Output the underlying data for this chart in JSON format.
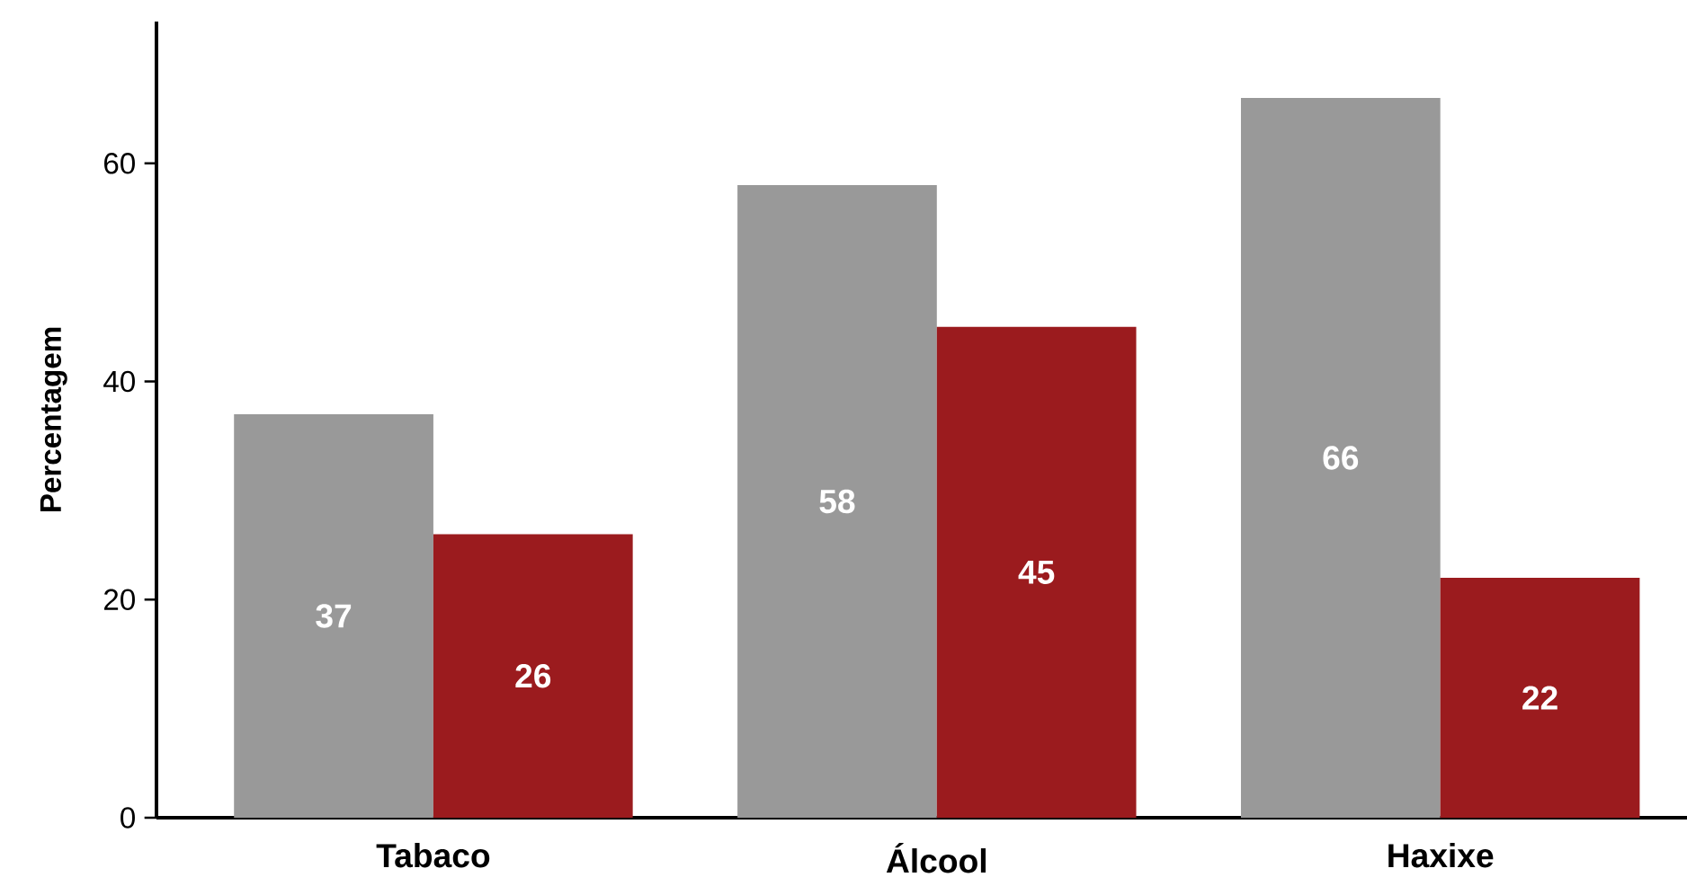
{
  "chart_data": {
    "type": "bar",
    "categories": [
      "Tabaco",
      "Álcool",
      "Haxixe"
    ],
    "ylabel": "Percentagem",
    "series": [
      {
        "color": "#999999",
        "values": [
          37,
          58,
          66
        ]
      },
      {
        "color": "#9b1b1e",
        "values": [
          26,
          45,
          22
        ]
      }
    ],
    "ylim": [
      0,
      73
    ],
    "yticks": [
      0,
      20,
      40,
      60
    ],
    "data_labels": true
  }
}
